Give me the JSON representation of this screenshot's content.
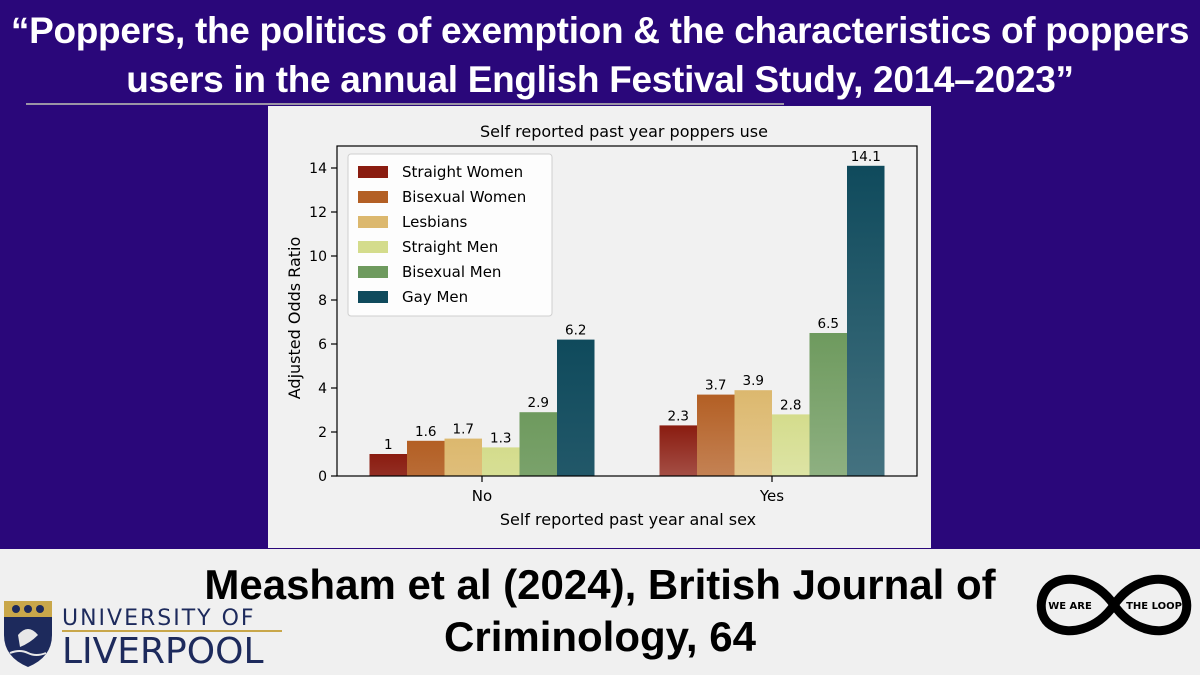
{
  "slide": {
    "title_line1": "“Poppers, the politics of exemption & the characteristics of poppers",
    "title_line2": "users in the annual English Festival Study, 2014–2023”",
    "citation_line1": "Measham et al (2024), British Journal of",
    "citation_line2": "Criminology, 64"
  },
  "logos": {
    "left": {
      "line1": "UNIVERSITY OF",
      "line2": "LIVERPOOL",
      "icon": "university-crest-icon"
    },
    "right": {
      "word1": "WE ARE",
      "word2": "THE LOOP",
      "icon": "infinity-loop-icon"
    }
  },
  "chart_data": {
    "type": "bar",
    "title": "Self reported past year poppers use",
    "xlabel": "Self reported past year anal sex",
    "ylabel": "Adjusted Odds Ratio",
    "categories": [
      "No",
      "Yes"
    ],
    "ylim": [
      0,
      15
    ],
    "yticks": [
      0,
      2,
      4,
      6,
      8,
      10,
      12,
      14
    ],
    "legend_position": "top-left",
    "series": [
      {
        "name": "Straight Women",
        "color": "#8a1c10",
        "values": [
          1,
          2.3
        ],
        "labels": [
          "1",
          "2.3"
        ]
      },
      {
        "name": "Bisexual Women",
        "color": "#b35f24",
        "values": [
          1.6,
          3.7
        ],
        "labels": [
          "1.6",
          "3.7"
        ]
      },
      {
        "name": "Lesbians",
        "color": "#dcb86e",
        "values": [
          1.7,
          3.9
        ],
        "labels": [
          "1.7",
          "3.9"
        ]
      },
      {
        "name": "Straight Men",
        "color": "#d4dc8c",
        "values": [
          1.3,
          2.8
        ],
        "labels": [
          "1.3",
          "2.8"
        ]
      },
      {
        "name": "Bisexual Men",
        "color": "#6e9a5e",
        "values": [
          2.9,
          6.5
        ],
        "labels": [
          "2.9",
          "6.5"
        ]
      },
      {
        "name": "Gay Men",
        "color": "#0f4a5c",
        "values": [
          6.2,
          14.1
        ],
        "labels": [
          "6.2",
          "14.1"
        ]
      }
    ]
  }
}
